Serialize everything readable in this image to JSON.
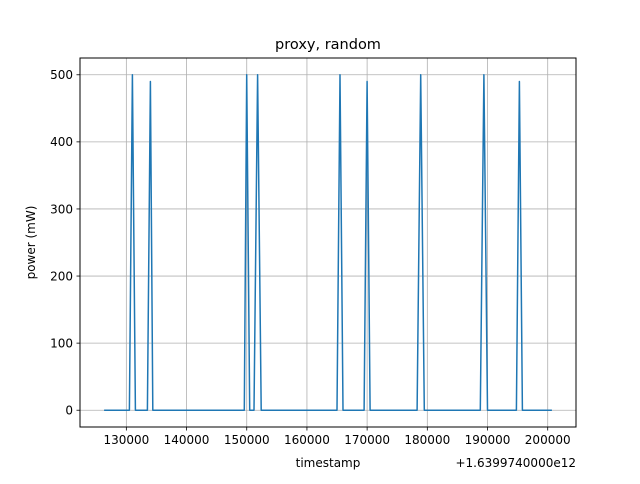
{
  "chart_data": {
    "type": "line",
    "title": "proxy, random",
    "xlabel": "timestamp",
    "ylabel": "power (mW)",
    "x_offset_label": "+1.6399740000e12",
    "xlim": [
      122300,
      204700
    ],
    "ylim": [
      -25,
      525
    ],
    "x_ticks": [
      130000,
      140000,
      150000,
      160000,
      170000,
      180000,
      190000,
      200000
    ],
    "x_tick_labels": [
      "130000",
      "140000",
      "150000",
      "160000",
      "170000",
      "180000",
      "190000",
      "200000"
    ],
    "y_ticks": [
      0,
      100,
      200,
      300,
      400,
      500
    ],
    "y_tick_labels": [
      "0",
      "100",
      "200",
      "300",
      "400",
      "500"
    ],
    "grid": true,
    "line_color": "#1f77b4",
    "series": [
      {
        "x": [
          126300,
          130500,
          131000,
          131500,
          133500,
          134000,
          134400,
          149600,
          150000,
          150500,
          151200,
          151800,
          152400,
          165000,
          165500,
          166000,
          169500,
          170000,
          170500,
          178300,
          178900,
          179500,
          188800,
          189400,
          190000,
          194800,
          195300,
          195800,
          200700
        ],
        "y": [
          0,
          0,
          500,
          0,
          0,
          490,
          0,
          0,
          500,
          0,
          0,
          500,
          0,
          0,
          500,
          0,
          0,
          490,
          0,
          0,
          500,
          0,
          0,
          500,
          0,
          0,
          490,
          0,
          0
        ]
      }
    ]
  }
}
